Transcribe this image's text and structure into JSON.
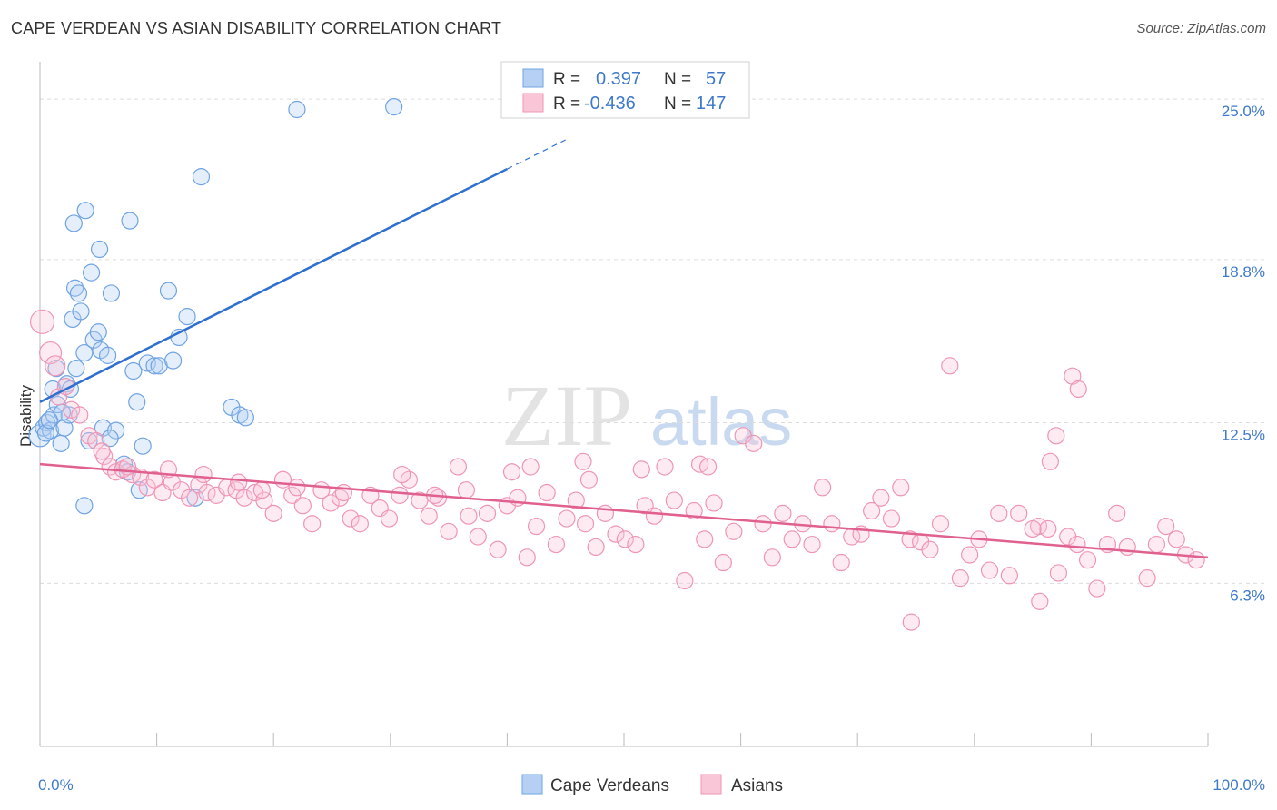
{
  "header": {
    "title": "CAPE VERDEAN VS ASIAN DISABILITY CORRELATION CHART",
    "source": "Source: ZipAtlas.com"
  },
  "watermark": {
    "zip": "ZIP",
    "atlas": "atlas"
  },
  "legend_box": {
    "rows": [
      {
        "r_label": "R =",
        "r_value": "0.397",
        "n_label": "N =",
        "n_value": "57",
        "color": "#7aaee8"
      },
      {
        "r_label": "R =",
        "r_value": "-0.436",
        "n_label": "N =",
        "n_value": "147",
        "color": "#f0a6be"
      }
    ]
  },
  "chart_data": {
    "type": "scatter",
    "title": "CAPE VERDEAN VS ASIAN DISABILITY CORRELATION CHART",
    "xlabel": "",
    "ylabel": "Disability",
    "xlim": [
      0,
      100
    ],
    "ylim": [
      0,
      26.3
    ],
    "x_tick_labels": [
      "0.0%",
      "100.0%"
    ],
    "y_ticks": [
      6.3,
      12.5,
      18.8,
      25.0
    ],
    "y_tick_labels": [
      "6.3%",
      "12.5%",
      "18.8%",
      "25.0%"
    ],
    "grid": true,
    "legend": "bottom-center",
    "colors": {
      "cape": "#6fa3e2",
      "asian": "#ef95b5",
      "cape_line": "#2e6fcf",
      "asian_line": "#e0608e",
      "tick_text": "#3f79cc"
    },
    "series": [
      {
        "name": "Cape Verdeans",
        "r": 0.397,
        "n": 57,
        "trend": {
          "x0": 0,
          "y0": 13.3,
          "x1": 40,
          "y1": 22.3,
          "dash_to_x": 45
        },
        "points": [
          [
            0.0,
            12.0
          ],
          [
            0.3,
            12.3
          ],
          [
            0.6,
            12.5
          ],
          [
            0.9,
            12.2
          ],
          [
            1.2,
            12.8
          ],
          [
            1.5,
            13.2
          ],
          [
            1.8,
            11.7
          ],
          [
            0.5,
            12.1
          ],
          [
            1.1,
            13.8
          ],
          [
            2.3,
            14.0
          ],
          [
            1.4,
            14.6
          ],
          [
            2.1,
            12.3
          ],
          [
            2.5,
            12.8
          ],
          [
            3.1,
            14.6
          ],
          [
            2.8,
            16.5
          ],
          [
            3.0,
            17.7
          ],
          [
            3.5,
            16.8
          ],
          [
            3.8,
            15.2
          ],
          [
            4.6,
            15.7
          ],
          [
            5.0,
            16.0
          ],
          [
            4.2,
            11.8
          ],
          [
            4.4,
            18.3
          ],
          [
            5.2,
            15.3
          ],
          [
            5.4,
            12.3
          ],
          [
            5.8,
            15.1
          ],
          [
            6.1,
            17.5
          ],
          [
            6.5,
            12.2
          ],
          [
            7.2,
            10.9
          ],
          [
            7.5,
            10.6
          ],
          [
            8.0,
            14.5
          ],
          [
            8.3,
            13.3
          ],
          [
            8.5,
            9.9
          ],
          [
            8.8,
            11.6
          ],
          [
            9.2,
            14.8
          ],
          [
            9.8,
            14.7
          ],
          [
            10.2,
            14.7
          ],
          [
            11.0,
            17.6
          ],
          [
            11.4,
            14.9
          ],
          [
            11.9,
            15.8
          ],
          [
            12.6,
            16.6
          ],
          [
            13.3,
            9.6
          ],
          [
            13.8,
            22.0
          ],
          [
            16.4,
            13.1
          ],
          [
            17.1,
            12.8
          ],
          [
            17.6,
            12.7
          ],
          [
            2.9,
            20.2
          ],
          [
            3.8,
            9.3
          ],
          [
            3.9,
            20.7
          ],
          [
            5.1,
            19.2
          ],
          [
            7.7,
            20.3
          ],
          [
            22.0,
            24.6
          ],
          [
            30.3,
            24.7
          ],
          [
            3.3,
            17.5
          ],
          [
            1.9,
            12.9
          ],
          [
            2.6,
            13.8
          ],
          [
            0.8,
            12.6
          ],
          [
            6.0,
            11.9
          ]
        ]
      },
      {
        "name": "Asians",
        "r": -0.436,
        "n": 147,
        "trend": {
          "x0": 0,
          "y0": 10.9,
          "x1": 100,
          "y1": 7.3
        },
        "points": [
          [
            0.2,
            16.4
          ],
          [
            0.9,
            15.2
          ],
          [
            1.3,
            14.7
          ],
          [
            1.6,
            13.5
          ],
          [
            2.2,
            13.9
          ],
          [
            2.7,
            13.0
          ],
          [
            3.4,
            12.8
          ],
          [
            4.2,
            12.0
          ],
          [
            4.8,
            11.8
          ],
          [
            5.5,
            11.2
          ],
          [
            6.0,
            10.8
          ],
          [
            6.5,
            10.6
          ],
          [
            7.1,
            10.7
          ],
          [
            7.9,
            10.5
          ],
          [
            8.6,
            10.4
          ],
          [
            9.2,
            10.0
          ],
          [
            9.8,
            10.3
          ],
          [
            10.5,
            9.8
          ],
          [
            11.3,
            10.2
          ],
          [
            12.1,
            9.9
          ],
          [
            12.8,
            9.6
          ],
          [
            13.6,
            10.1
          ],
          [
            14.3,
            9.8
          ],
          [
            15.1,
            9.7
          ],
          [
            16.0,
            10.0
          ],
          [
            16.8,
            9.9
          ],
          [
            17.5,
            9.6
          ],
          [
            18.4,
            9.8
          ],
          [
            19.2,
            9.5
          ],
          [
            20.0,
            9.0
          ],
          [
            20.8,
            10.3
          ],
          [
            21.6,
            9.7
          ],
          [
            22.5,
            9.3
          ],
          [
            23.3,
            8.6
          ],
          [
            24.1,
            9.9
          ],
          [
            24.9,
            9.4
          ],
          [
            25.7,
            9.6
          ],
          [
            26.6,
            8.8
          ],
          [
            27.4,
            8.6
          ],
          [
            28.3,
            9.7
          ],
          [
            29.1,
            9.2
          ],
          [
            29.9,
            8.8
          ],
          [
            30.8,
            9.7
          ],
          [
            31.6,
            10.3
          ],
          [
            32.5,
            9.5
          ],
          [
            33.3,
            8.9
          ],
          [
            34.1,
            9.6
          ],
          [
            35.0,
            8.3
          ],
          [
            35.8,
            10.8
          ],
          [
            36.7,
            8.9
          ],
          [
            37.5,
            8.1
          ],
          [
            38.3,
            9.0
          ],
          [
            39.2,
            7.6
          ],
          [
            40.0,
            9.3
          ],
          [
            40.9,
            9.6
          ],
          [
            41.7,
            7.3
          ],
          [
            42.5,
            8.5
          ],
          [
            43.4,
            9.8
          ],
          [
            44.2,
            7.8
          ],
          [
            45.1,
            8.8
          ],
          [
            45.9,
            9.5
          ],
          [
            46.7,
            8.6
          ],
          [
            47.6,
            7.7
          ],
          [
            48.4,
            9.0
          ],
          [
            49.3,
            8.2
          ],
          [
            50.1,
            8.0
          ],
          [
            51.0,
            7.8
          ],
          [
            51.8,
            9.3
          ],
          [
            52.6,
            8.9
          ],
          [
            53.5,
            10.8
          ],
          [
            54.3,
            9.5
          ],
          [
            55.2,
            6.4
          ],
          [
            56.0,
            9.1
          ],
          [
            56.9,
            8.0
          ],
          [
            57.7,
            9.4
          ],
          [
            58.5,
            7.1
          ],
          [
            59.4,
            8.3
          ],
          [
            60.2,
            12.0
          ],
          [
            61.1,
            11.7
          ],
          [
            61.9,
            8.6
          ],
          [
            62.7,
            7.3
          ],
          [
            63.6,
            9.0
          ],
          [
            64.4,
            8.0
          ],
          [
            65.3,
            8.6
          ],
          [
            66.1,
            7.8
          ],
          [
            67.0,
            10.0
          ],
          [
            67.8,
            8.6
          ],
          [
            68.6,
            7.1
          ],
          [
            69.5,
            8.1
          ],
          [
            70.3,
            8.2
          ],
          [
            71.2,
            9.1
          ],
          [
            72.0,
            9.6
          ],
          [
            72.9,
            8.8
          ],
          [
            73.7,
            10.0
          ],
          [
            74.5,
            8.0
          ],
          [
            75.4,
            7.9
          ],
          [
            76.2,
            7.6
          ],
          [
            77.1,
            8.6
          ],
          [
            77.9,
            14.7
          ],
          [
            78.8,
            6.5
          ],
          [
            79.6,
            7.4
          ],
          [
            80.4,
            8.0
          ],
          [
            81.3,
            6.8
          ],
          [
            82.1,
            9.0
          ],
          [
            83.0,
            6.6
          ],
          [
            83.8,
            9.0
          ],
          [
            74.6,
            4.8
          ],
          [
            85.5,
            8.5
          ],
          [
            86.3,
            8.4
          ],
          [
            87.2,
            6.7
          ],
          [
            88.0,
            8.1
          ],
          [
            88.8,
            7.8
          ],
          [
            89.7,
            7.2
          ],
          [
            90.5,
            6.1
          ],
          [
            91.4,
            7.8
          ],
          [
            92.2,
            9.0
          ],
          [
            93.1,
            7.7
          ],
          [
            85.6,
            5.6
          ],
          [
            94.8,
            6.5
          ],
          [
            95.6,
            7.8
          ],
          [
            96.4,
            8.5
          ],
          [
            97.3,
            8.0
          ],
          [
            98.1,
            7.4
          ],
          [
            99.0,
            7.2
          ],
          [
            85.0,
            8.4
          ],
          [
            86.5,
            11.0
          ],
          [
            87.0,
            12.0
          ],
          [
            88.4,
            14.3
          ],
          [
            88.9,
            13.8
          ],
          [
            11.0,
            10.7
          ],
          [
            14.0,
            10.5
          ],
          [
            17.0,
            10.2
          ],
          [
            22.0,
            10.0
          ],
          [
            26.0,
            9.8
          ],
          [
            31.0,
            10.5
          ],
          [
            36.5,
            9.9
          ],
          [
            42.0,
            10.8
          ],
          [
            46.5,
            11.0
          ],
          [
            51.5,
            10.7
          ],
          [
            56.5,
            10.9
          ],
          [
            57.2,
            10.8
          ],
          [
            47.0,
            10.3
          ],
          [
            40.4,
            10.6
          ],
          [
            33.8,
            9.7
          ],
          [
            19.0,
            9.9
          ],
          [
            7.5,
            10.8
          ],
          [
            5.3,
            11.4
          ]
        ]
      }
    ]
  }
}
